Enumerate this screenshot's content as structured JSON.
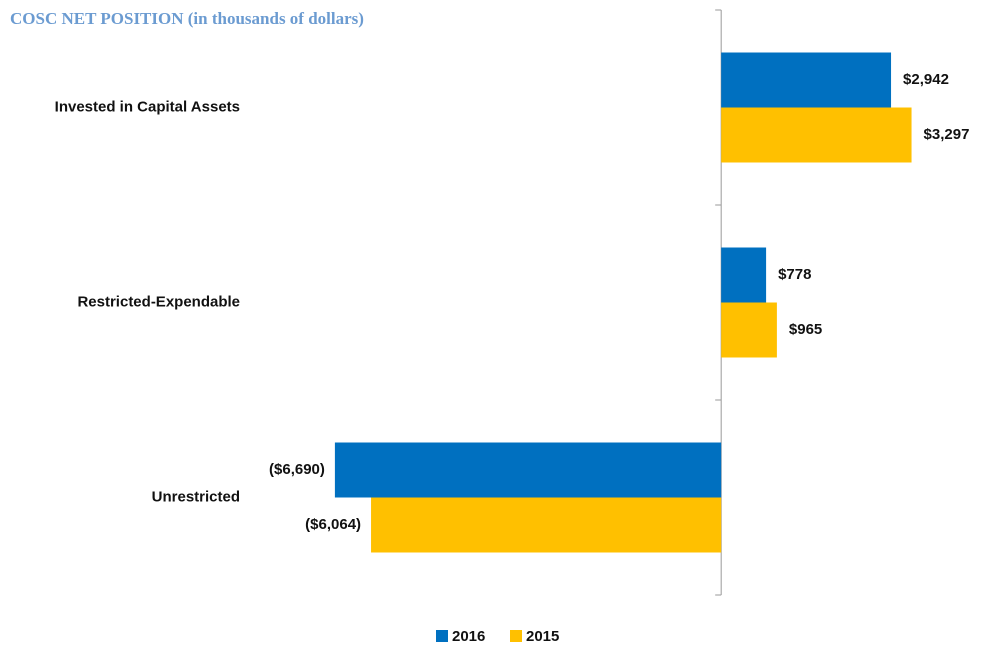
{
  "chart_data": {
    "type": "hbar",
    "title": "COSC NET POSITION (in thousands of dollars)",
    "categories": [
      "Invested in Capital Assets",
      "Restricted-Expendable",
      "Unrestricted"
    ],
    "series": [
      {
        "name": "2016",
        "color": "#0070c0",
        "values": [
          2942,
          778,
          -6690
        ],
        "value_labels": [
          "$2,942",
          "$778",
          "($6,690)"
        ]
      },
      {
        "name": "2015",
        "color": "#ffc000",
        "values": [
          3297,
          965,
          -6064
        ],
        "value_labels": [
          "$3,297",
          "$965",
          "($6,064)"
        ]
      }
    ],
    "xlim": [
      -7000,
      4500
    ],
    "legend": "bottom"
  }
}
